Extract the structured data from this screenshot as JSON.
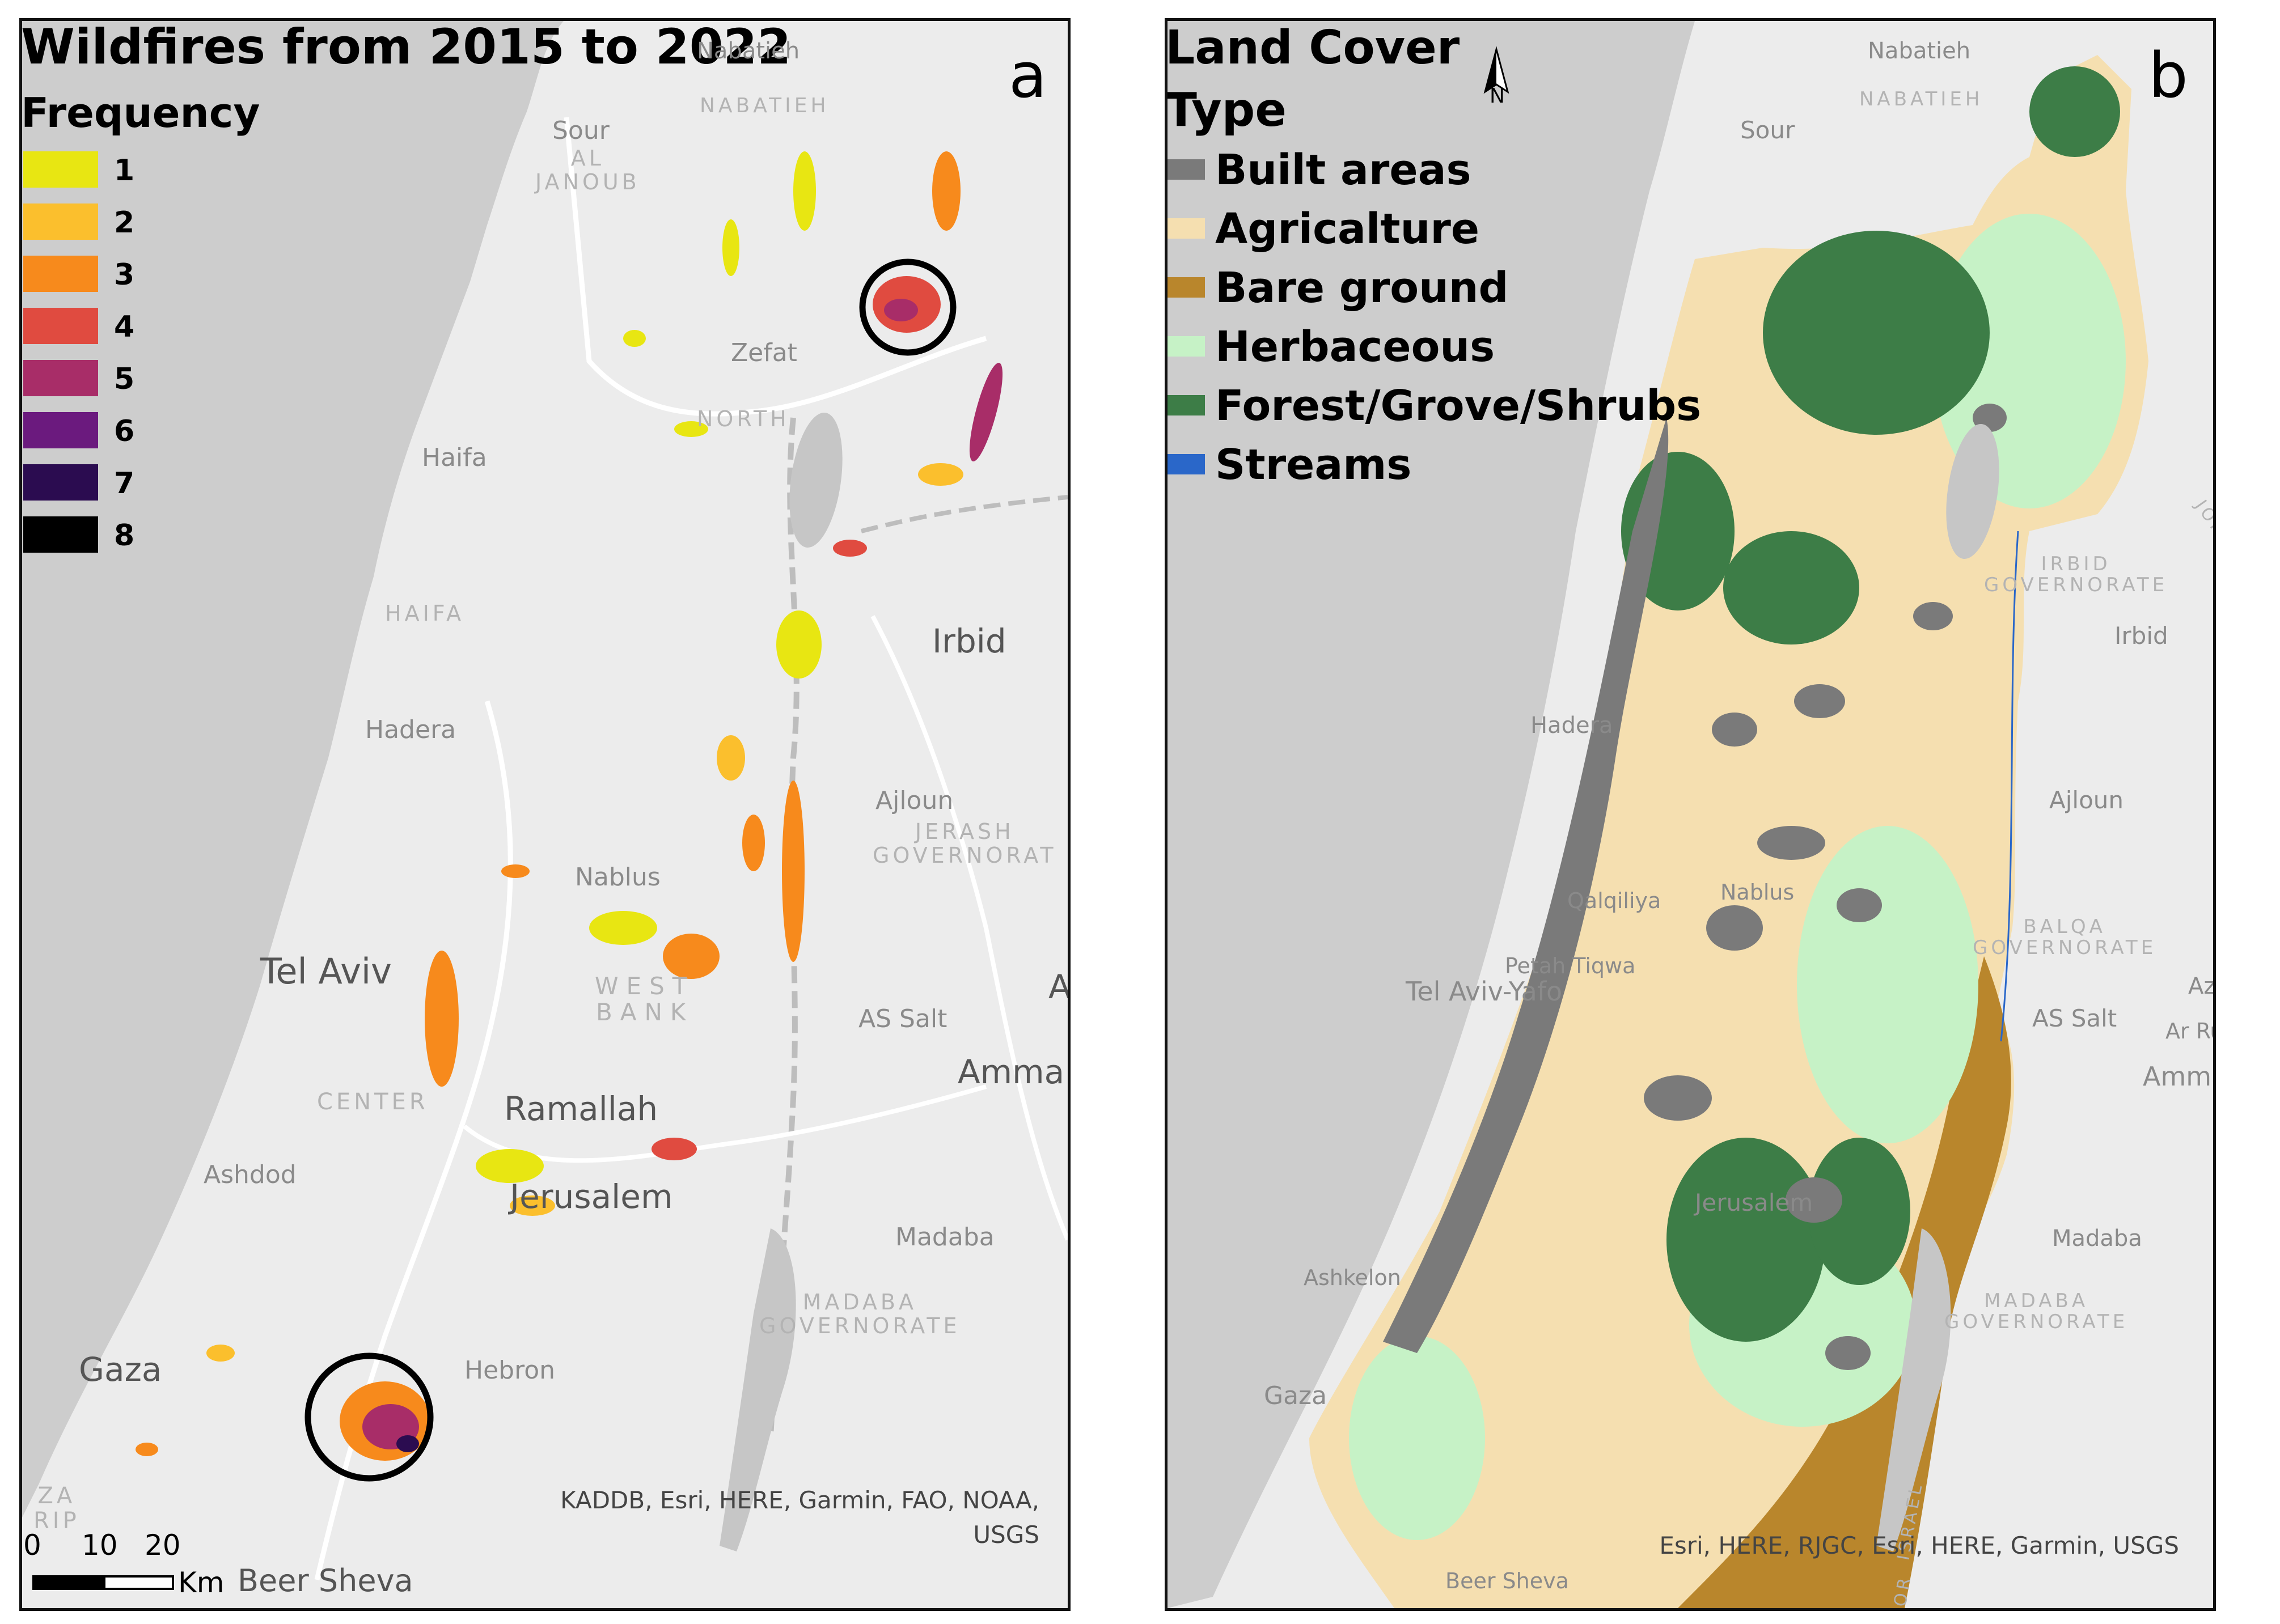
{
  "panel_a": {
    "title": "Wildfires from 2015 to 2022",
    "panel_letter": "a",
    "legend_title": "Frequency",
    "legend": [
      {
        "label": "1",
        "color": "#e8e612"
      },
      {
        "label": "2",
        "color": "#fbbf2d"
      },
      {
        "label": "3",
        "color": "#f78a1c"
      },
      {
        "label": "4",
        "color": "#e04b40"
      },
      {
        "label": "5",
        "color": "#a82d68"
      },
      {
        "label": "6",
        "color": "#6b1a7e"
      },
      {
        "label": "7",
        "color": "#2b0c50"
      },
      {
        "label": "8",
        "color": "#000000"
      }
    ],
    "places": {
      "nabatieh": "Nabatieh",
      "nabatieh_region": "NABATIEH",
      "sour": "Sour",
      "al_janoub": "AL\nJANOUB",
      "zefat": "Zefat",
      "north": "NORTH",
      "haifa_city": "Haifa",
      "haifa_region": "HAIFA",
      "hadera": "Hadera",
      "irbid": "Irbid",
      "ajloun": "Ajloun",
      "jerash": "JERASH\nGOVERNORAT",
      "nablus": "Nablus",
      "west_bank": "WEST\nBANK",
      "tel_aviv": "Tel Aviv",
      "as_salt": "AS Salt",
      "amman": "Amma",
      "a_edge": "A",
      "center": "CENTER",
      "ramallah": "Ramallah",
      "ashdod": "Ashdod",
      "jerusalem": "Jerusalem",
      "madaba": "Madaba",
      "madaba_gov": "MADABA\nGOVERNORATE",
      "gaza": "Gaza",
      "hebron": "Hebron",
      "za_rip": "ZA\nRIP",
      "beer_sheva": "Beer Sheva"
    },
    "attribution": "KADDB, Esri, HERE, Garmin, FAO, NOAA,\nUSGS",
    "scale": {
      "ticks": [
        "0",
        "10",
        "20"
      ],
      "unit": "Km"
    }
  },
  "panel_b": {
    "title_line1": "Land Cover",
    "title_line2": "Type",
    "panel_letter": "b",
    "north_label": "N",
    "legend": [
      {
        "label": "Built areas",
        "color": "#7a7a7a"
      },
      {
        "label": "Agricalture",
        "color": "#f5dfb0"
      },
      {
        "label": "Bare ground",
        "color": "#b9862c"
      },
      {
        "label": "Herbaceous",
        "color": "#c6f2c6"
      },
      {
        "label": "Forest/Grove/Shrubs",
        "color": "#3d7d47"
      },
      {
        "label": "Streams",
        "color": "#2a67c9"
      }
    ],
    "places": {
      "nabatieh": "Nabatieh",
      "nabatieh_region": "NABATIEH",
      "sour": "Sour",
      "syria_jordan": "SYRIA\nJORDAN",
      "irbid_gov": "IRBID\nGOVERNORATE",
      "irbid": "Irbid",
      "hadera": "Hadera",
      "ajloun": "Ajloun",
      "qalqiliya": "Qalqiliya",
      "nablus": "Nablus",
      "petah_tiqwa": "Petah Tiqwa",
      "tel_aviv_yafo": "Tel Aviv-Yafo",
      "balqa": "BALQA\nGOVERNORATE",
      "as_salt": "AS Salt",
      "az": "Az",
      "ar_rus": "Ar Rus",
      "amman": "Amman",
      "jerusalem": "Jerusalem",
      "ashkelon": "Ashkelon",
      "madaba": "Madaba",
      "madaba_gov": "MADABA\nGOVERNORATE",
      "gaza": "Gaza",
      "beer_sheva": "Beer Sheva",
      "israel": "ISRAEL",
      "jor": "JOR"
    },
    "attribution": "Esri, HERE, RJGC, Esri, HERE, Garmin, USGS"
  }
}
